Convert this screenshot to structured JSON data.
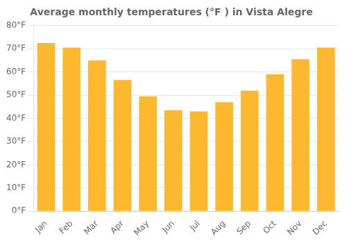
{
  "chart_data": {
    "type": "bar",
    "title": "Average monthly temperatures (°F ) in Vista Alegre",
    "categories": [
      "Jan",
      "Feb",
      "Mar",
      "Apr",
      "May",
      "Jun",
      "Jul",
      "Aug",
      "Sep",
      "Oct",
      "Nov",
      "Dec"
    ],
    "values": [
      72.5,
      70.5,
      65.0,
      56.5,
      49.5,
      43.5,
      43.0,
      47.0,
      52.0,
      59.0,
      65.5,
      70.5
    ],
    "color": "#FDB830",
    "ylim": [
      0,
      80
    ],
    "yticks": [
      {
        "value": 0,
        "label": "0°F"
      },
      {
        "value": 10,
        "label": "10°F"
      },
      {
        "value": 20,
        "label": "20°F"
      },
      {
        "value": 30,
        "label": "30°F"
      },
      {
        "value": 40,
        "label": "40°F"
      },
      {
        "value": 50,
        "label": "50°F"
      },
      {
        "value": 60,
        "label": "60°F"
      },
      {
        "value": 70,
        "label": "70°F"
      },
      {
        "value": 80,
        "label": "80°F"
      }
    ],
    "grid": true
  }
}
